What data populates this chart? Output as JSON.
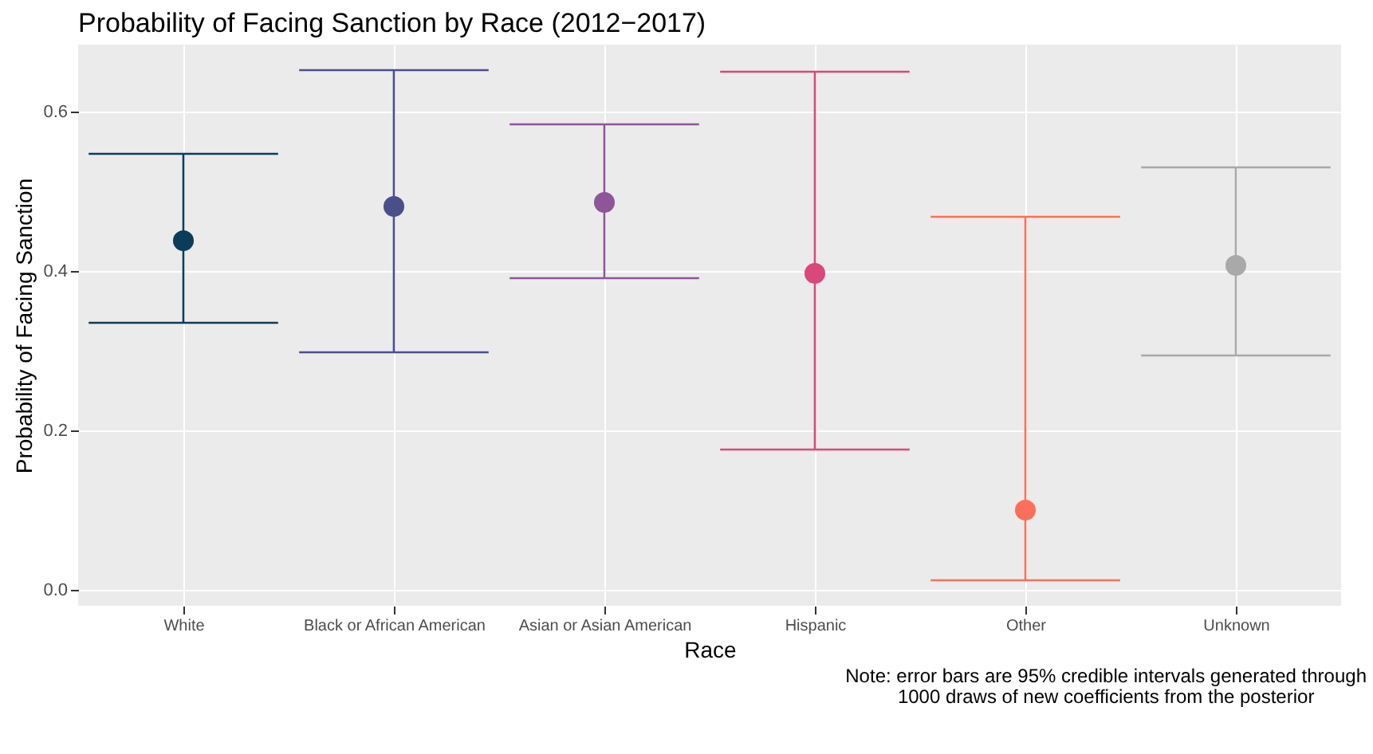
{
  "chart_data": {
    "type": "scatter",
    "title": "Probability of Facing Sanction by Race (2012−2017)",
    "xlabel": "Race",
    "ylabel": "Probability of Facing Sanction",
    "categories": [
      "White",
      "Black or African American",
      "Asian or Asian American",
      "Hispanic",
      "Other",
      "Unknown"
    ],
    "values": [
      0.438,
      0.481,
      0.486,
      0.397,
      0.1,
      0.407
    ],
    "errors": [
      [
        0.335,
        0.547
      ],
      [
        0.298,
        0.652
      ],
      [
        0.391,
        0.584
      ],
      [
        0.176,
        0.65
      ],
      [
        0.012,
        0.468
      ],
      [
        0.294,
        0.53
      ]
    ],
    "colors": [
      "#0b3d5b",
      "#4a4f8c",
      "#8e5599",
      "#d9487a",
      "#fd6f5a",
      "#a9a9a9"
    ],
    "ylim": [
      -0.02,
      0.684
    ],
    "yticks": [
      {
        "value": 0,
        "label": "0.0"
      },
      {
        "value": 0.2,
        "label": "0.2"
      },
      {
        "value": 0.4,
        "label": "0.4"
      },
      {
        "value": 0.6,
        "label": "0.6"
      }
    ],
    "grid": true,
    "marker": "circle",
    "annotations": [
      "Note: error bars are 95% credible intervals generated through\n1000 draws of new coefficients from the posterior"
    ]
  }
}
